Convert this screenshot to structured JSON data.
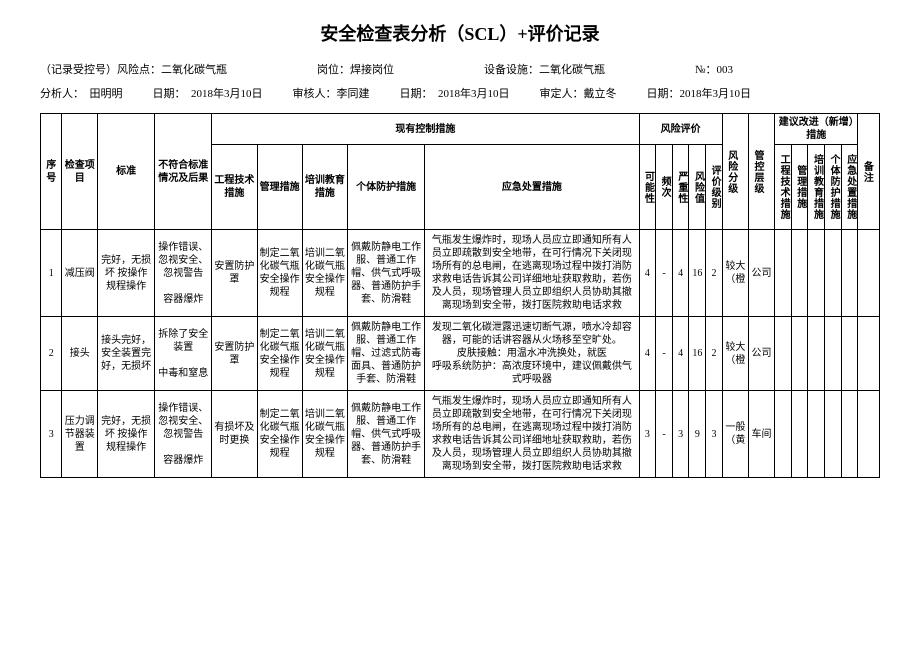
{
  "title": "安全检查表分析（SCL）+评价记录",
  "meta1": {
    "record_label": "（记录受控号）风险点：",
    "record_value": "二氧化碳气瓶",
    "post_label": "岗位：",
    "post_value": "焊接岗位",
    "equipment_label": "设备设施：",
    "equipment_value": "二氧化碳气瓶",
    "no_label": "№：",
    "no_value": "003"
  },
  "meta2": {
    "analyst_label": "分析人：",
    "analyst_value": "田明明",
    "date1_label": "日期：",
    "date1_value": "2018年3月10日",
    "reviewer_label": "审核人：",
    "reviewer_value": "李同建",
    "date2_label": "日期：",
    "date2_value": "2018年3月10日",
    "approver_label": "审定人：",
    "approver_value": "戴立冬",
    "date3_label": "日期：",
    "date3_value": "2018年3月10日"
  },
  "headers": {
    "seq": "序号",
    "item": "检查项目",
    "standard": "标准",
    "nonconform": "不符合标准情况及后果",
    "control_group": "现有控制措施",
    "eng": "工程技术措施",
    "mgmt": "管理措施",
    "train": "培训教育措施",
    "ppe": "个体防护措施",
    "emergency": "应急处置措施",
    "risk_group": "风险评价",
    "possibility": "可能性",
    "frequency": "频次",
    "severity": "严重性",
    "risk_value": "风险值",
    "eval_level": "评价级别",
    "risk_level": "风险分级",
    "control_level": "管控层级",
    "improvement_group": "建议改进（新增）措施",
    "imp_eng": "工程技术措施",
    "imp_mgmt": "管理措施",
    "imp_train": "培训教育措施",
    "imp_ppe": "个体防护措施",
    "imp_emergency": "应急处置措施",
    "remark": "备注"
  },
  "rows": [
    {
      "seq": "1",
      "item": "减压阀",
      "standard": "完好，无损坏 按操作规程操作",
      "nonconform": "操作错误、忽视安全、忽视警告\n\n容器爆炸",
      "eng": "安置防护罩",
      "mgmt": "制定二氧化碳气瓶安全操作规程",
      "train": "培训二氧化碳气瓶安全操作规程",
      "ppe": "佩戴防静电工作服、普通工作帽、供气式呼吸器、普通防护手套、防滑鞋",
      "emergency": "气瓶发生爆炸时，现场人员应立即通知所有人员立即疏散到安全地带，在可行情况下关闭现场所有的总电闸，在逃离现场过程中拨打消防求救电话告诉其公司详细地址获取救助，若伤及人员，现场管理人员立即组织人员协助其撤离现场到安全带，拨打医院救助电话求救",
      "possibility": "4",
      "frequency": "-",
      "severity": "4",
      "risk_value": "16",
      "eval_level": "2",
      "risk_level": "较大（橙",
      "control_level": "公司"
    },
    {
      "seq": "2",
      "item": "接头",
      "standard": "接头完好，安全装置完好，无损坏",
      "nonconform": "拆除了安全装置\n\n中毒和窒息",
      "eng": "安置防护罩",
      "mgmt": "制定二氧化碳气瓶安全操作规程",
      "train": "培训二氧化碳气瓶安全操作规程",
      "ppe": "佩戴防静电工作服、普通工作帽、过滤式防毒面具、普通防护手套、防滑鞋",
      "emergency": "发现二氧化碳泄露迅速切断气源，喷水冷却容器，可能的话讲容器从火场移至空旷处。\n皮肤接触：用温水冲洗换处，就医\n呼吸系统防护：高浓度环境中，建议佩戴供气式呼吸器",
      "possibility": "4",
      "frequency": "-",
      "severity": "4",
      "risk_value": "16",
      "eval_level": "2",
      "risk_level": "较大（橙",
      "control_level": "公司"
    },
    {
      "seq": "3",
      "item": "压力调节器装置",
      "standard": "完好，无损坏 按操作规程操作",
      "nonconform": "操作错误、忽视安全、忽视警告\n\n容器爆炸",
      "eng": "有损坏及时更换",
      "mgmt": "制定二氧化碳气瓶安全操作规程",
      "train": "培训二氧化碳气瓶安全操作规程",
      "ppe": "佩戴防静电工作服、普通工作帽、供气式呼吸器、普通防护手套、防滑鞋",
      "emergency": "气瓶发生爆炸时，现场人员应立即通知所有人员立即疏散到安全地带，在可行情况下关闭现场所有的总电闸，在逃离现场过程中拨打消防求救电话告诉其公司详细地址获取救助，若伤及人员，现场管理人员立即组织人员协助其撤离现场到安全带，拨打医院救助电话求救",
      "possibility": "3",
      "frequency": "-",
      "severity": "3",
      "risk_value": "9",
      "eval_level": "3",
      "risk_level": "一般（黄",
      "control_level": "车间"
    }
  ]
}
